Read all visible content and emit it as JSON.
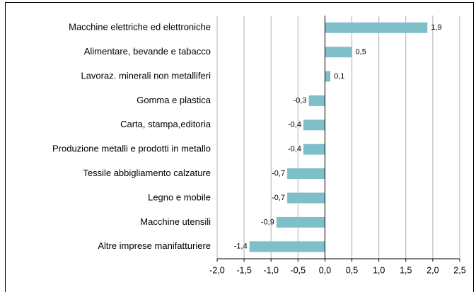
{
  "chart_data": {
    "type": "hbar",
    "categories": [
      "Macchine elettriche ed elettroniche",
      "Alimentare, bevande e tabacco",
      "Lavoraz. minerali non metalliferi",
      "Gomma e plastica",
      "Carta, stampa,editoria",
      "Produzione metalli e prodotti in metallo",
      "Tessile abbigliamento calzature",
      "Legno e mobile",
      "Macchine utensili",
      "Altre imprese manifatturiere"
    ],
    "values": [
      1.9,
      0.5,
      0.1,
      -0.3,
      -0.4,
      -0.4,
      -0.7,
      -0.7,
      -0.9,
      -1.4
    ],
    "value_labels": [
      "1,9",
      "0,5",
      "0,1",
      "-0,3",
      "-0,4",
      "-0,4",
      "-0,7",
      "-0,7",
      "-0,9",
      "-1,4"
    ],
    "color": "#7fbfca",
    "xlim": [
      -2.0,
      2.5
    ],
    "xticks": [
      {
        "value": -2.0,
        "label": "-2,0"
      },
      {
        "value": -1.5,
        "label": "-1,5"
      },
      {
        "value": -1.0,
        "label": "-1,0"
      },
      {
        "value": -0.5,
        "label": "-0,5"
      },
      {
        "value": 0.0,
        "label": "0,0"
      },
      {
        "value": 0.5,
        "label": "0,5"
      },
      {
        "value": 1.0,
        "label": "1,0"
      },
      {
        "value": 1.5,
        "label": "1,5"
      },
      {
        "value": 2.0,
        "label": "2,0"
      },
      {
        "value": 2.5,
        "label": "2,5"
      }
    ],
    "grid": true
  }
}
